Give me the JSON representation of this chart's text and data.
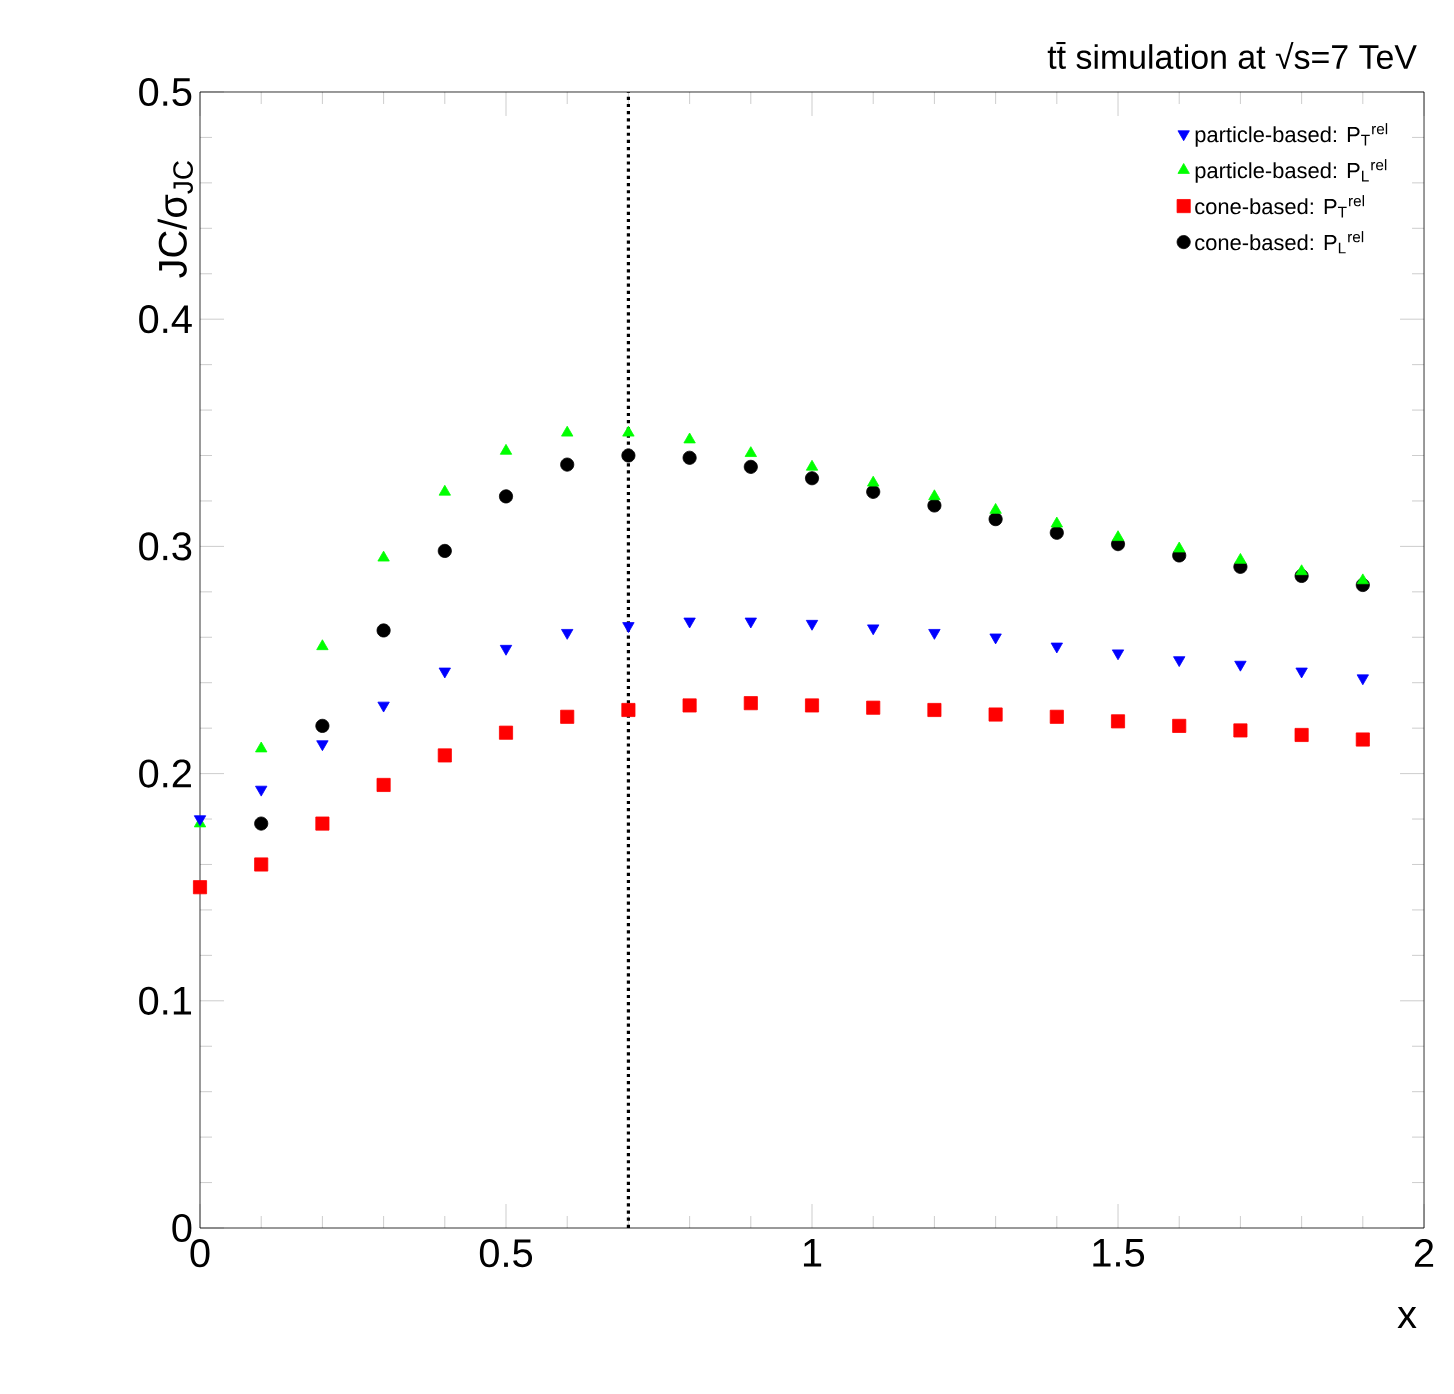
{
  "chart_data": {
    "type": "scatter",
    "title": "tt̄ simulation at √s=7 TeV",
    "xlabel": "x",
    "ylabel": "JC/σ$_{JC}$",
    "x": [
      0,
      0.1,
      0.2,
      0.3,
      0.4,
      0.5,
      0.6,
      0.7,
      0.8,
      0.9,
      1.0,
      1.1,
      1.2,
      1.3,
      1.4,
      1.5,
      1.6,
      1.7,
      1.8,
      1.9
    ],
    "series": [
      {
        "name": "particle-based: P$_{T}$$^{rel}$",
        "color": "#0000ff",
        "marker": "triangle-down",
        "values": [
          0.18,
          0.193,
          0.213,
          0.23,
          0.245,
          0.255,
          0.262,
          0.265,
          0.267,
          0.267,
          0.266,
          0.264,
          0.262,
          0.26,
          0.256,
          0.253,
          0.25,
          0.248,
          0.245,
          0.242
        ]
      },
      {
        "name": "particle-based: P$_{L}$$^{rel}$",
        "color": "#00ff00",
        "marker": "triangle",
        "values": [
          0.178,
          0.211,
          0.256,
          0.295,
          0.324,
          0.342,
          0.35,
          0.35,
          0.347,
          0.341,
          0.335,
          0.328,
          0.322,
          0.316,
          0.31,
          0.304,
          0.299,
          0.294,
          0.289,
          0.285
        ]
      },
      {
        "name": "cone-based: P$_{T}$$^{rel}$",
        "color": "#ff0000",
        "marker": "square",
        "values": [
          0.15,
          0.16,
          0.178,
          0.195,
          0.208,
          0.218,
          0.225,
          0.228,
          0.23,
          0.231,
          0.23,
          0.229,
          0.228,
          0.226,
          0.225,
          0.223,
          0.221,
          0.219,
          0.217,
          0.215
        ]
      },
      {
        "name": "cone-based: P$_{L}$$^{rel}$",
        "color": "#000000",
        "marker": "circle",
        "values": [
          null,
          0.178,
          0.221,
          0.263,
          0.298,
          0.322,
          0.336,
          0.34,
          0.339,
          0.335,
          0.33,
          0.324,
          0.318,
          0.312,
          0.306,
          0.301,
          0.296,
          0.291,
          0.287,
          0.283
        ]
      }
    ],
    "xlim": [
      0,
      2
    ],
    "ylim": [
      0,
      0.5
    ],
    "xticks": [
      0,
      0.5,
      1,
      1.5,
      2
    ],
    "yticks": [
      0,
      0.1,
      0.2,
      0.3,
      0.4,
      0.5
    ],
    "ref_lines": [
      {
        "axis": "x",
        "value": 0.7,
        "line_style": "dotted",
        "color": "#000000"
      }
    ],
    "legend": "top right",
    "grid": false
  }
}
